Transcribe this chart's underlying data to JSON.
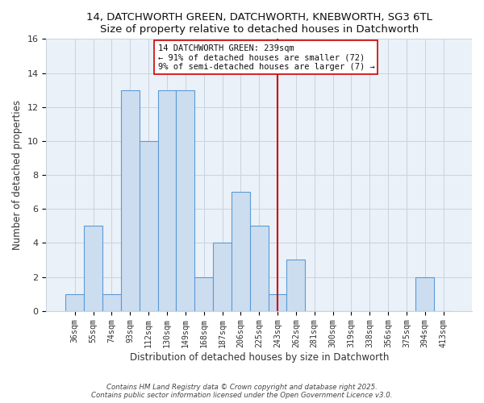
{
  "title": "14, DATCHWORTH GREEN, DATCHWORTH, KNEBWORTH, SG3 6TL",
  "subtitle": "Size of property relative to detached houses in Datchworth",
  "xlabel": "Distribution of detached houses by size in Datchworth",
  "ylabel": "Number of detached properties",
  "bar_labels": [
    "36sqm",
    "55sqm",
    "74sqm",
    "93sqm",
    "112sqm",
    "130sqm",
    "149sqm",
    "168sqm",
    "187sqm",
    "206sqm",
    "225sqm",
    "243sqm",
    "262sqm",
    "281sqm",
    "300sqm",
    "319sqm",
    "338sqm",
    "356sqm",
    "375sqm",
    "394sqm",
    "413sqm"
  ],
  "bar_values": [
    1,
    5,
    1,
    13,
    10,
    13,
    13,
    2,
    4,
    7,
    5,
    1,
    3,
    0,
    0,
    0,
    0,
    0,
    0,
    2,
    0
  ],
  "bar_color": "#cdddf0",
  "bar_edge_color": "#5b9bd5",
  "vline_x_index": 11,
  "vline_color": "#cc0000",
  "annotation_title": "14 DATCHWORTH GREEN: 239sqm",
  "annotation_line1": "← 91% of detached houses are smaller (72)",
  "annotation_line2": "9% of semi-detached houses are larger (7) →",
  "ylim": [
    0,
    16
  ],
  "yticks": [
    0,
    2,
    4,
    6,
    8,
    10,
    12,
    14,
    16
  ],
  "footer1": "Contains HM Land Registry data © Crown copyright and database right 2025.",
  "footer2": "Contains public sector information licensed under the Open Government Licence v3.0.",
  "background_color": "#ffffff",
  "plot_bg_color": "#eaf1f8",
  "grid_color": "#c8d4e0"
}
